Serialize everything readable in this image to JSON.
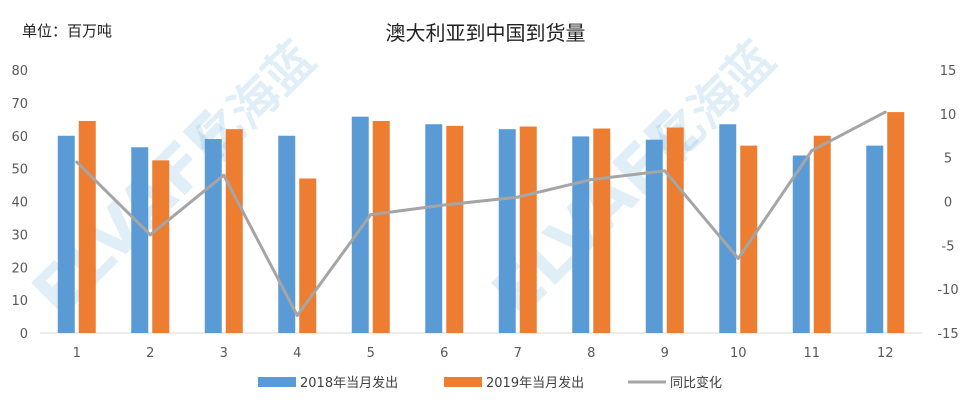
{
  "chart_data": {
    "type": "bar",
    "title": "澳大利亚到中国到货量",
    "unit_label": "单位：百万吨",
    "categories": [
      "1",
      "2",
      "3",
      "4",
      "5",
      "6",
      "7",
      "8",
      "9",
      "10",
      "11",
      "12"
    ],
    "series": [
      {
        "name": "2018年当月发出",
        "type": "bar",
        "axis": "left",
        "color": "#5b9bd5",
        "values": [
          60.0,
          56.5,
          59.0,
          60.0,
          65.8,
          63.5,
          62.0,
          59.8,
          58.8,
          63.5,
          54.0,
          57.0
        ]
      },
      {
        "name": "2019年当月发出",
        "type": "bar",
        "axis": "left",
        "color": "#ed7d31",
        "values": [
          64.5,
          52.5,
          62.0,
          47.0,
          64.5,
          63.0,
          62.8,
          62.2,
          62.5,
          57.0,
          60.0,
          67.2
        ]
      },
      {
        "name": "同比变化",
        "type": "line",
        "axis": "right",
        "color": "#a5a5a5",
        "values": [
          4.5,
          -3.8,
          3.0,
          -13.0,
          -1.5,
          -0.4,
          0.5,
          2.5,
          3.5,
          -6.5,
          5.8,
          10.2
        ]
      }
    ],
    "y_left": {
      "min": 0,
      "max": 80,
      "ticks": [
        0,
        10,
        20,
        30,
        40,
        50,
        60,
        70,
        80
      ]
    },
    "y_right": {
      "min": -15,
      "max": 15,
      "ticks": [
        -15,
        -10,
        -5,
        0,
        5,
        10,
        15
      ]
    },
    "grid": false,
    "legend": "bottom"
  },
  "watermark": {
    "brand": "ELVAFE",
    "name": "亿海蓝"
  }
}
